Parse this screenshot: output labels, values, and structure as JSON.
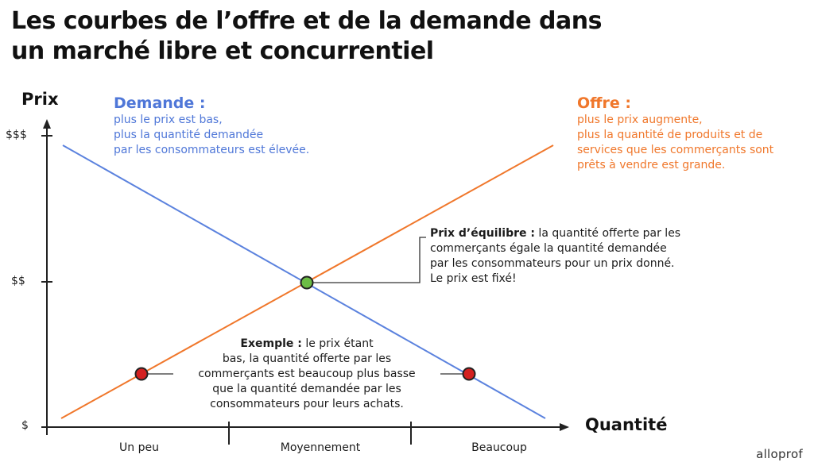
{
  "title": {
    "line1": "Les courbes de l’offre et de la demande dans",
    "line2": "un marché libre et concurrentiel"
  },
  "axes": {
    "y_title": "Prix",
    "x_title": "Quantité",
    "y_ticks": [
      "$$$",
      "$$",
      "$"
    ],
    "x_categories": [
      "Un peu",
      "Moyennement",
      "Beaucoup"
    ]
  },
  "demande": {
    "heading": "Demande :",
    "lines": [
      "plus le prix est bas,",
      "plus la quantité demandée",
      "par les consommateurs est élevée."
    ],
    "color": "#4f77d8"
  },
  "offre": {
    "heading": "Offre :",
    "lines": [
      "plus le prix augmente,",
      "plus la quantité de produits et de",
      "services que les commerçants sont",
      "prêts à vendre est grande."
    ],
    "color": "#f0772b"
  },
  "equilibre": {
    "label": "Prix d’équilibre :",
    "line1_rest": " la quantité offerte par les",
    "lines": [
      "commerçants égale la quantité demandée",
      "par les consommateurs pour un prix donné.",
      "Le prix est fixé!"
    ],
    "marker_color": "#6cbd45"
  },
  "exemple": {
    "label": "Exemple :",
    "line1_rest": " le prix étant",
    "lines": [
      "bas, la quantité offerte par les",
      "commerçants est beaucoup plus basse",
      "que la quantité demandée par les",
      "consommateurs pour leurs achats."
    ],
    "marker_color": "#d42020"
  },
  "brand": "alloprof"
}
